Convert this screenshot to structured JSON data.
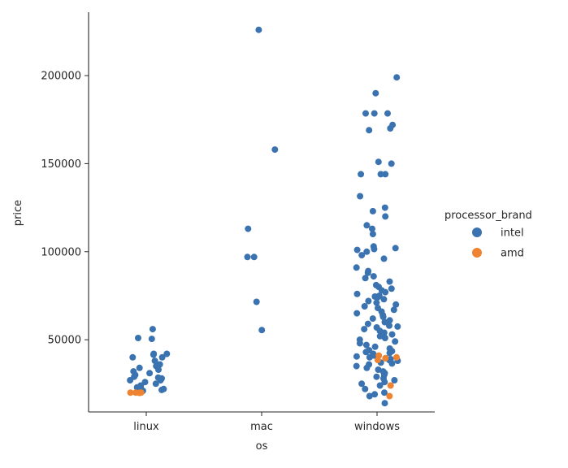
{
  "chart_data": {
    "type": "scatter",
    "subtype": "strip",
    "xlabel": "os",
    "ylabel": "price",
    "categories": [
      "linux",
      "mac",
      "windows"
    ],
    "yticks": [
      50000,
      100000,
      150000,
      200000
    ],
    "ylim": [
      9000,
      236000
    ],
    "grid": false,
    "legend": {
      "title": "processor_brand",
      "placement": "right",
      "entries": [
        {
          "label": "intel",
          "color": "#3a73b0"
        },
        {
          "label": "amd",
          "color": "#ee8331"
        }
      ]
    },
    "series": [
      {
        "name": "intel",
        "color": "#3a73b0",
        "points": {
          "linux": [
            56000,
            51000,
            50500,
            42000,
            42000,
            41500,
            40000,
            40000,
            38000,
            36000,
            35000,
            34000,
            33000,
            32000,
            31000,
            30000,
            29000,
            28500,
            28000,
            27000,
            27000,
            26000,
            25000,
            24000,
            23000,
            22500,
            22000,
            21500,
            21000
          ],
          "mac": [
            226000,
            158000,
            113000,
            97000,
            97000,
            71500,
            55500
          ],
          "windows": [
            199000,
            190000,
            178500,
            178500,
            178500,
            172000,
            170000,
            169000,
            151000,
            150000,
            144000,
            144000,
            144000,
            131500,
            125000,
            123000,
            120000,
            115000,
            113000,
            110000,
            103000,
            102000,
            101500,
            101000,
            100000,
            98000,
            96000,
            91000,
            89000,
            88000,
            86000,
            85000,
            83000,
            81000,
            80000,
            79000,
            78000,
            77000,
            76000,
            75000,
            74500,
            74000,
            73000,
            72000,
            71000,
            70000,
            69000,
            68000,
            67000,
            66000,
            65000,
            64000,
            63000,
            62000,
            61000,
            60000,
            59000,
            58000,
            57500,
            57000,
            56000,
            55000,
            54000,
            53000,
            52000,
            51000,
            50000,
            49000,
            48000,
            47000,
            46000,
            45000,
            44000,
            43500,
            43000,
            42500,
            42000,
            41000,
            40500,
            40000,
            39500,
            39000,
            38500,
            38000,
            37000,
            36500,
            36000,
            35000,
            34000,
            33000,
            32000,
            31000,
            30000,
            29000,
            28000,
            27000,
            26000,
            25000,
            24000,
            22000,
            20000,
            19000,
            18000,
            14000
          ]
        }
      },
      {
        "name": "amd",
        "color": "#ee8331",
        "points": {
          "linux": [
            20000,
            20000,
            20000,
            19800,
            20000
          ],
          "mac": [],
          "windows": [
            41000,
            40000,
            39500,
            38500,
            24000,
            18000
          ]
        }
      }
    ]
  }
}
